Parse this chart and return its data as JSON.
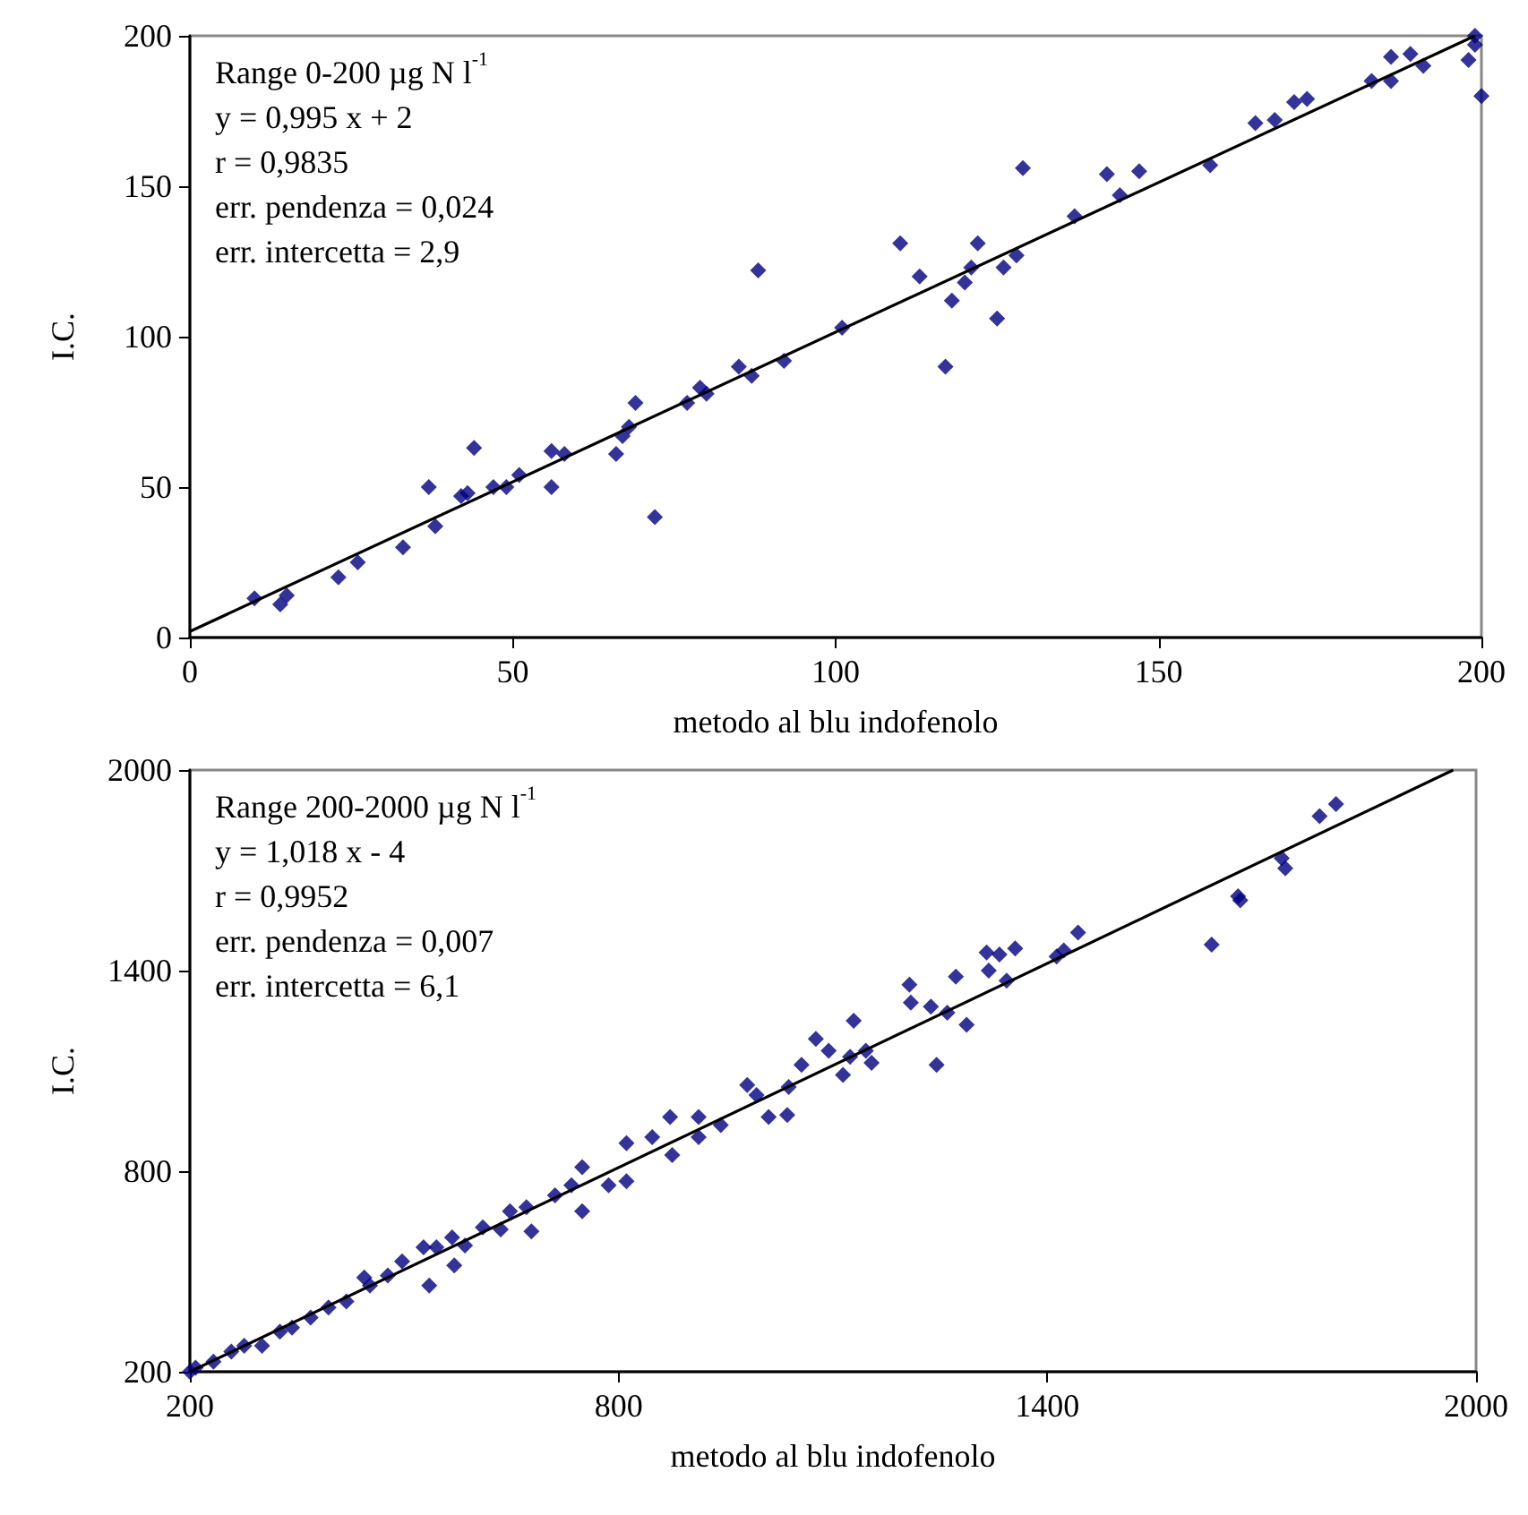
{
  "chart_data": [
    {
      "type": "scatter",
      "xlabel": "metodo al blu indofenolo",
      "ylabel": "I.C.",
      "xlim": [
        0,
        200
      ],
      "ylim": [
        0,
        200
      ],
      "xticks": [
        0,
        50,
        100,
        150,
        200
      ],
      "yticks": [
        0,
        50,
        100,
        150,
        200
      ],
      "marker": "diamond",
      "annotations": [
        "Range 0-200 µg N l$^{-1}$",
        "y = 0,995 x + 2",
        "r = 0,9835",
        "err. pendenza = 0,024",
        "err. intercetta = 2,9"
      ],
      "series": [
        {
          "color": "#000080",
          "x": [
            10,
            14,
            15,
            23,
            26,
            33,
            37,
            38,
            42,
            43,
            44,
            47,
            49,
            51,
            56,
            56,
            58,
            66,
            67,
            68,
            69,
            72,
            77,
            79,
            80,
            85,
            87,
            88,
            92,
            101,
            110,
            113,
            117,
            118,
            120,
            121,
            122,
            125,
            126,
            128,
            129,
            137,
            142,
            144,
            147,
            158,
            165,
            168,
            171,
            173,
            183,
            186,
            186,
            189,
            191,
            198,
            199,
            199,
            200
          ],
          "values": [
            13,
            11,
            14,
            20,
            25,
            30,
            50,
            37,
            47,
            48,
            63,
            50,
            50,
            54,
            62,
            50,
            61,
            61,
            67,
            70,
            78,
            40,
            78,
            83,
            81,
            90,
            87,
            122,
            92,
            103,
            131,
            120,
            90,
            112,
            118,
            123,
            131,
            106,
            123,
            127,
            156,
            140,
            154,
            147,
            155,
            157,
            171,
            172,
            178,
            179,
            185,
            185,
            193,
            194,
            190,
            192,
            200,
            197,
            180
          ]
        },
        {
          "type": "line",
          "color": "#000000",
          "marker": "none",
          "line_style": "solid",
          "x": [
            0,
            199
          ],
          "values": [
            2,
            200
          ]
        }
      ]
    },
    {
      "type": "scatter",
      "xlabel": "metodo al blu indofenolo",
      "ylabel": "I.C.",
      "xlim": [
        200,
        2000
      ],
      "ylim": [
        200,
        2000
      ],
      "xticks": [
        200,
        800,
        1400,
        2000
      ],
      "yticks": [
        200,
        800,
        1400,
        2000
      ],
      "marker": "diamond",
      "annotations": [
        "Range 200-2000 µg N l$^{-1}$",
        "y = 1,018 x - 4",
        "r = 0,9952",
        "err. pendenza = 0,007",
        "err. intercetta = 6,1"
      ],
      "series": [
        {
          "color": "#000080",
          "x": [
            200,
            208,
            233,
            258,
            276,
            301,
            326,
            343,
            369,
            394,
            419,
            444,
            452,
            477,
            497,
            527,
            535,
            545,
            567,
            570,
            585,
            610,
            635,
            648,
            671,
            678,
            711,
            734,
            749,
            749,
            786,
            811,
            811,
            847,
            872,
            875,
            912,
            912,
            943,
            980,
            993,
            1010,
            1036,
            1038,
            1056,
            1076,
            1094,
            1114,
            1124,
            1129,
            1146,
            1154,
            1207,
            1209,
            1237,
            1245,
            1260,
            1272,
            1287,
            1315,
            1318,
            1333,
            1343,
            1355,
            1413,
            1423,
            1443,
            1630,
            1667,
            1670,
            1728,
            1733,
            1781,
            1804
          ],
          "values": [
            200,
            212,
            230,
            260,
            278,
            278,
            320,
            332,
            362,
            392,
            410,
            482,
            458,
            488,
            530,
            572,
            458,
            572,
            602,
            518,
            578,
            632,
            626,
            680,
            692,
            620,
            728,
            758,
            812,
            680,
            758,
            884,
            770,
            902,
            962,
            848,
            962,
            902,
            938,
            1058,
            1028,
            962,
            968,
            1052,
            1118,
            1196,
            1160,
            1088,
            1142,
            1250,
            1160,
            1124,
            1358,
            1304,
            1292,
            1118,
            1274,
            1382,
            1238,
            1454,
            1400,
            1448,
            1370,
            1466,
            1442,
            1460,
            1514,
            1478,
            1622,
            1610,
            1736,
            1706,
            1862,
            1898
          ]
        },
        {
          "type": "line",
          "color": "#000000",
          "marker": "none",
          "line_style": "solid",
          "x": [
            200,
            1968
          ],
          "values": [
            200,
            2000
          ]
        }
      ]
    }
  ]
}
